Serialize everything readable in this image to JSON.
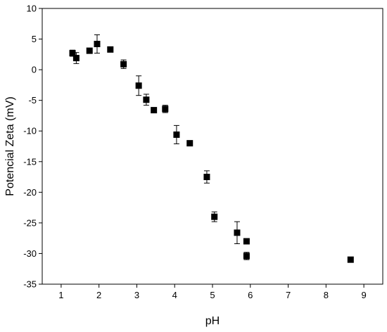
{
  "chart_data": {
    "type": "scatter",
    "xlabel": "pH",
    "ylabel": "Potencial Zeta (mV)",
    "xlim": [
      0.5,
      9.5
    ],
    "ylim": [
      -35,
      10
    ],
    "xticks": [
      1,
      2,
      3,
      4,
      5,
      6,
      7,
      8,
      9
    ],
    "yticks": [
      10,
      5,
      0,
      -5,
      -10,
      -15,
      -20,
      -25,
      -30,
      -35
    ],
    "grid": false,
    "marker": "square",
    "marker_color": "#000000",
    "points": [
      {
        "x": 1.3,
        "y": 2.7,
        "err": 0.5
      },
      {
        "x": 1.4,
        "y": 1.9,
        "err": 0.9
      },
      {
        "x": 1.75,
        "y": 3.1,
        "err": 0
      },
      {
        "x": 1.95,
        "y": 4.2,
        "err": 1.5
      },
      {
        "x": 2.3,
        "y": 3.3,
        "err": 0
      },
      {
        "x": 2.65,
        "y": 0.9,
        "err": 0.7
      },
      {
        "x": 3.05,
        "y": -2.6,
        "err": 1.6
      },
      {
        "x": 3.25,
        "y": -4.9,
        "err": 0.9
      },
      {
        "x": 3.45,
        "y": -6.6,
        "err": 0
      },
      {
        "x": 3.75,
        "y": -6.4,
        "err": 0.6
      },
      {
        "x": 4.05,
        "y": -10.6,
        "err": 1.5
      },
      {
        "x": 4.4,
        "y": -12.0,
        "err": 0
      },
      {
        "x": 4.85,
        "y": -17.5,
        "err": 1.0
      },
      {
        "x": 5.05,
        "y": -24.0,
        "err": 0.8
      },
      {
        "x": 5.65,
        "y": -26.6,
        "err": 1.8
      },
      {
        "x": 5.9,
        "y": -28.0,
        "err": 0.4
      },
      {
        "x": 5.9,
        "y": -30.4,
        "err": 0.6
      },
      {
        "x": 8.65,
        "y": -31.0,
        "err": 0.3
      }
    ]
  }
}
